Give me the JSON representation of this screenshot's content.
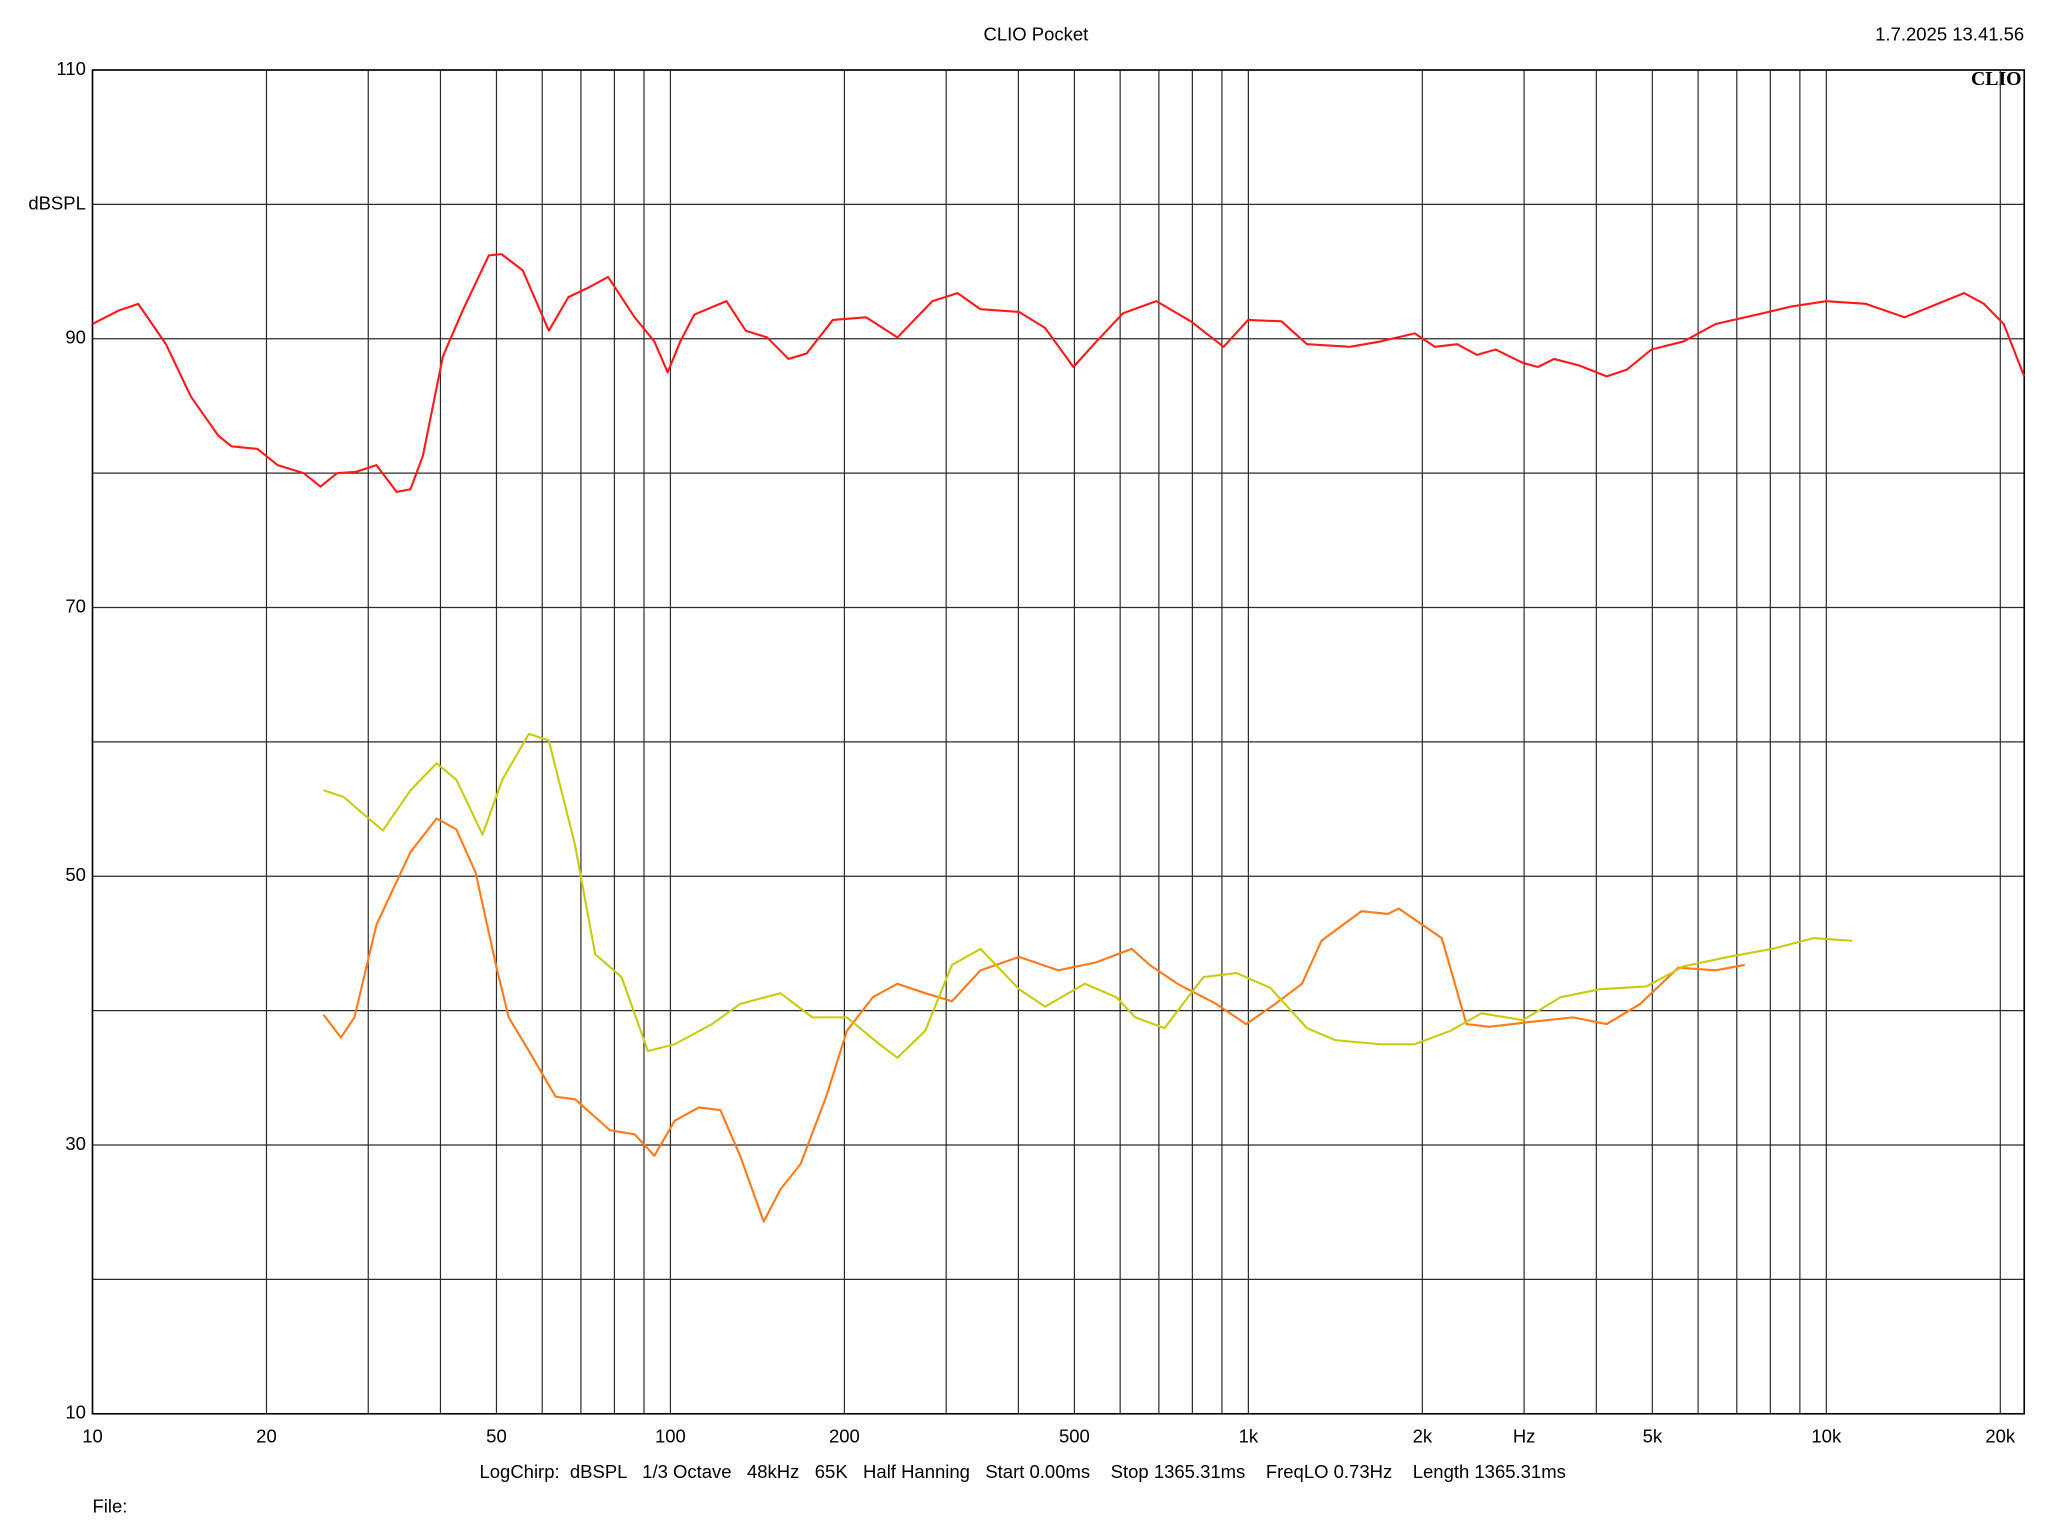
{
  "chart_data": {
    "type": "line",
    "title": "CLIO Pocket",
    "timestamp": "1.7.2025 13.41.56",
    "logo": "CLIO",
    "footer": "LogChirp:  dBSPL   1/3 Octave   48kHz   65K   Half Hanning   Start 0.00ms    Stop 1365.31ms    FreqLO 0.73Hz    Length 1365.31ms",
    "file_label": "File:",
    "log_x": true,
    "grid": true,
    "xlim": [
      10,
      22000
    ],
    "ylim": [
      10,
      110
    ],
    "xticks": [
      10,
      20,
      50,
      100,
      200,
      500,
      {
        "value": 1000,
        "label": "1k"
      },
      {
        "value": 2000,
        "label": "2k"
      },
      {
        "value": 3000,
        "label": "Hz"
      },
      {
        "value": 5000,
        "label": "5k"
      },
      {
        "value": 10000,
        "label": "10k"
      },
      {
        "value": 20000,
        "label": "20k"
      }
    ],
    "minor_xticks": [
      30,
      40,
      60,
      70,
      80,
      90,
      300,
      400,
      600,
      700,
      800,
      900,
      4000,
      6000,
      7000,
      8000,
      9000
    ],
    "yticks": [
      10,
      30,
      50,
      70,
      90,
      {
        "value": 100,
        "label": "dBSPL"
      },
      110
    ],
    "minor_yticks": [
      20,
      40,
      60,
      80
    ],
    "series": [
      {
        "color": "#ff1a1a",
        "x": [
          10,
          11.1,
          12,
          13.4,
          14.8,
          16.5,
          17.4,
          19.3,
          20.9,
          23.2,
          24.8,
          26.5,
          28.6,
          31,
          33.6,
          35.5,
          37.3,
          40.4,
          43.7,
          48.5,
          51,
          55.5,
          61.6,
          66.6,
          72.1,
          78,
          86.7,
          93.8,
          98.9,
          104,
          110,
          125,
          135,
          147,
          160,
          172,
          191,
          218,
          247,
          284,
          314,
          344,
          401,
          445,
          498,
          546,
          607,
          693,
          795,
          906,
          999,
          1141,
          1263,
          1499,
          1693,
          1940,
          2103,
          2298,
          2486,
          2679,
          2985,
          3169,
          3380,
          3744,
          4168,
          4516,
          4982,
          5664,
          6432,
          7597,
          8688,
          9998,
          11705,
          13656,
          15573,
          17311,
          18742,
          20274,
          22000
        ],
        "values": [
          91.1,
          92.1,
          92.6,
          89.6,
          85.7,
          82.8,
          82.0,
          81.8,
          80.6,
          80.0,
          79.0,
          80.0,
          80.1,
          80.6,
          78.6,
          78.8,
          81.3,
          88.7,
          92.1,
          96.2,
          96.3,
          95.1,
          90.6,
          93.1,
          93.8,
          94.6,
          91.6,
          89.8,
          87.5,
          89.8,
          91.8,
          92.8,
          90.6,
          90.1,
          88.5,
          88.9,
          91.4,
          91.6,
          90.1,
          92.8,
          93.4,
          92.2,
          92.0,
          90.8,
          87.9,
          89.8,
          91.9,
          92.8,
          91.3,
          89.4,
          91.4,
          91.3,
          89.6,
          89.4,
          89.8,
          90.4,
          89.4,
          89.6,
          88.8,
          89.2,
          88.2,
          87.9,
          88.5,
          88.0,
          87.2,
          87.7,
          89.2,
          89.8,
          91.1,
          91.8,
          92.4,
          92.8,
          92.6,
          91.6,
          92.6,
          93.4,
          92.6,
          91.1,
          87.2
        ]
      },
      {
        "color": "#ff7a1a",
        "x": [
          25.1,
          26.9,
          28.4,
          31,
          35.5,
          39.4,
          42.6,
          46,
          49.9,
          52.5,
          56.9,
          63.3,
          68.4,
          78.6,
          86.7,
          93.8,
          101.7,
          112,
          122,
          132,
          145,
          155,
          168,
          186,
          202,
          224,
          247,
          276,
          307,
          344,
          401,
          469,
          546,
          628,
          675,
          754,
          880,
          991,
          1113,
          1238,
          1338,
          1569,
          1743,
          1820,
          2161,
          2384,
          2610,
          3133,
          3647,
          4168,
          4763,
          5546,
          6432,
          7225
        ],
        "values": [
          39.7,
          38.0,
          39.5,
          46.4,
          51.8,
          54.3,
          53.5,
          50.3,
          43.4,
          39.5,
          37.0,
          33.6,
          33.4,
          31.1,
          30.8,
          29.2,
          31.8,
          32.8,
          32.6,
          29.2,
          24.3,
          26.7,
          28.6,
          33.6,
          38.5,
          41.0,
          42.0,
          41.3,
          40.7,
          43.0,
          44.0,
          43.0,
          43.6,
          44.6,
          43.4,
          42.0,
          40.5,
          39.0,
          40.5,
          42.0,
          45.2,
          47.4,
          47.2,
          47.6,
          45.4,
          39.0,
          38.8,
          39.2,
          39.5,
          39.0,
          40.5,
          43.2,
          43.0,
          43.4
        ]
      },
      {
        "color": "#c8cc10",
        "x": [
          25.1,
          27.2,
          31.8,
          35.5,
          39.4,
          42.6,
          47.3,
          51.2,
          56.9,
          61.6,
          68.4,
          74.1,
          82.3,
          91.4,
          101.7,
          118,
          132,
          155,
          176,
          202,
          230,
          247,
          276,
          307,
          344,
          401,
          445,
          521,
          591,
          637,
          716,
          836,
          954,
          1091,
          1263,
          1414,
          1693,
          1940,
          2237,
          2530,
          2985,
          3469,
          4062,
          4883,
          5664,
          6769,
          8060,
          9507,
          11096
        ],
        "values": [
          56.4,
          55.9,
          53.4,
          56.4,
          58.4,
          57.2,
          53.1,
          57.2,
          60.6,
          60.1,
          52.3,
          44.2,
          42.5,
          37.0,
          37.5,
          39.0,
          40.5,
          41.3,
          39.5,
          39.5,
          37.5,
          36.5,
          38.5,
          43.4,
          44.6,
          41.6,
          40.3,
          42.0,
          41.0,
          39.5,
          38.7,
          42.5,
          42.8,
          41.7,
          38.7,
          37.8,
          37.5,
          37.5,
          38.5,
          39.8,
          39.3,
          41.0,
          41.6,
          41.8,
          43.3,
          44.0,
          44.6,
          45.4,
          45.2
        ]
      }
    ]
  }
}
